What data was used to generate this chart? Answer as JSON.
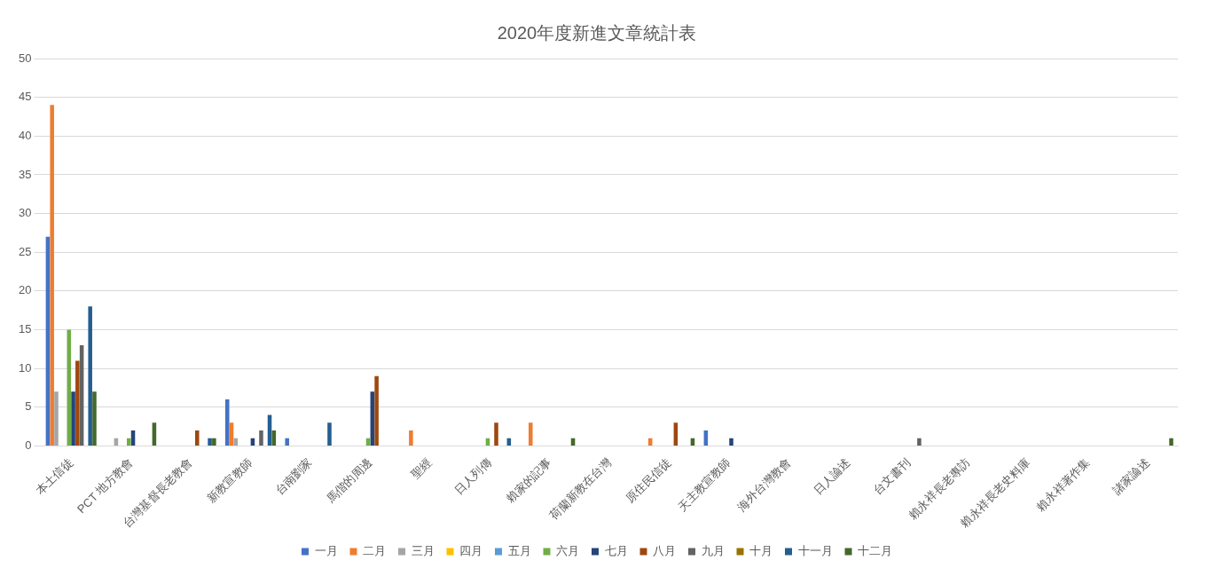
{
  "chart_data": {
    "type": "bar",
    "title": "2020年度新進文章統計表",
    "categories": [
      "本土信徒",
      "PCT 地方教會",
      "台灣基督長老教會",
      "新教宣教師",
      "台南劉家",
      "馬偕的周邊",
      "聖經",
      "日人列傳",
      "賴家的記事",
      "荷蘭新教在台灣",
      "原住民信徒",
      "天主教宣教師",
      "海外台灣教會",
      "日人論述",
      "台文書刊",
      "賴永祥長老專訪",
      "賴永祥長老史料庫",
      "賴永祥著作集",
      "諸家論述"
    ],
    "series": [
      {
        "name": "一月",
        "color": "#4472c4",
        "values": [
          27,
          0,
          0,
          6,
          1,
          0,
          0,
          0,
          0,
          0,
          0,
          2,
          0,
          0,
          0,
          0,
          0,
          0,
          0
        ]
      },
      {
        "name": "二月",
        "color": "#ed7d31",
        "values": [
          44,
          0,
          0,
          3,
          0,
          0,
          2,
          0,
          3,
          0,
          1,
          0,
          0,
          0,
          0,
          0,
          0,
          0,
          0
        ]
      },
      {
        "name": "三月",
        "color": "#a5a5a5",
        "values": [
          7,
          1,
          0,
          1,
          0,
          0,
          0,
          0,
          0,
          0,
          0,
          0,
          0,
          0,
          0,
          0,
          0,
          0,
          0
        ]
      },
      {
        "name": "四月",
        "color": "#ffc000",
        "values": [
          0,
          0,
          0,
          0,
          0,
          0,
          0,
          0,
          0,
          0,
          0,
          0,
          0,
          0,
          0,
          0,
          0,
          0,
          0
        ]
      },
      {
        "name": "五月",
        "color": "#5b9bd5",
        "values": [
          0,
          0,
          0,
          0,
          0,
          0,
          0,
          0,
          0,
          0,
          0,
          0,
          0,
          0,
          0,
          0,
          0,
          0,
          0
        ]
      },
      {
        "name": "六月",
        "color": "#70ad47",
        "values": [
          15,
          1,
          0,
          0,
          0,
          1,
          0,
          1,
          0,
          0,
          0,
          0,
          0,
          0,
          0,
          0,
          0,
          0,
          0
        ]
      },
      {
        "name": "七月",
        "color": "#264478",
        "values": [
          7,
          2,
          0,
          1,
          0,
          7,
          0,
          0,
          0,
          0,
          0,
          1,
          0,
          0,
          0,
          0,
          0,
          0,
          0
        ]
      },
      {
        "name": "八月",
        "color": "#9e480e",
        "values": [
          11,
          0,
          2,
          0,
          0,
          9,
          0,
          3,
          0,
          0,
          3,
          0,
          0,
          0,
          0,
          0,
          0,
          0,
          0
        ]
      },
      {
        "name": "九月",
        "color": "#636363",
        "values": [
          13,
          0,
          0,
          2,
          0,
          0,
          0,
          0,
          0,
          0,
          0,
          0,
          0,
          0,
          1,
          0,
          0,
          0,
          0
        ]
      },
      {
        "name": "十月",
        "color": "#997300",
        "values": [
          0,
          0,
          0,
          0,
          0,
          0,
          0,
          0,
          0,
          0,
          0,
          0,
          0,
          0,
          0,
          0,
          0,
          0,
          0
        ]
      },
      {
        "name": "十一月",
        "color": "#255e91",
        "values": [
          18,
          0,
          1,
          4,
          3,
          0,
          0,
          1,
          0,
          0,
          0,
          0,
          0,
          0,
          0,
          0,
          0,
          0,
          0
        ]
      },
      {
        "name": "十二月",
        "color": "#43682b",
        "values": [
          7,
          3,
          1,
          2,
          0,
          0,
          0,
          0,
          1,
          0,
          1,
          0,
          0,
          0,
          0,
          0,
          0,
          0,
          1
        ]
      }
    ],
    "ylim": [
      0,
      50
    ],
    "yticks": [
      0,
      5,
      10,
      15,
      20,
      25,
      30,
      35,
      40,
      45,
      50
    ],
    "grid": "y",
    "legend": "bottom"
  }
}
